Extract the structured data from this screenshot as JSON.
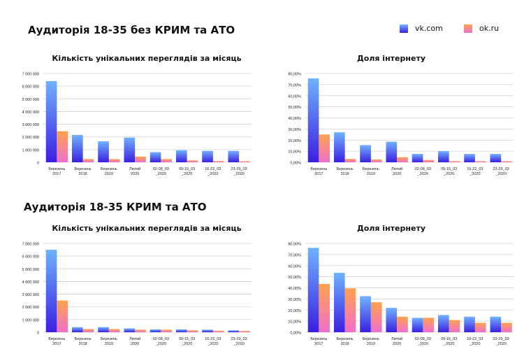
{
  "colors": {
    "vk_top": "#6fb2ff",
    "vk_bottom": "#3b1fe0",
    "ok_top": "#ffa24d",
    "ok_bottom": "#f070cc",
    "grid": "#d0d0d0"
  },
  "sections": [
    {
      "title": "Аудиторія 18-35 без КРИМ та АТО"
    },
    {
      "title": "Аудиторія 18-35 КРИМ та АТО"
    }
  ],
  "legend": [
    {
      "label": "vk.com",
      "color_key": "vk"
    },
    {
      "label": "ok.ru",
      "color_key": "ok"
    }
  ],
  "chart_titles": [
    "Кількість унікальних переглядів за місяць",
    "Доля інтернету",
    "Кількість унікальних переглядів за місяць",
    "Доля інтернету"
  ],
  "chart_data": [
    {
      "type": "bar",
      "title": "Кількість унікальних переглядів за місяць",
      "categories": [
        "Березень 2017",
        "Березень 2018",
        "Березень 2019",
        "Лютий 2020",
        "02-08_03 _2020",
        "09-15_03 _2020",
        "16-22_03 _2020",
        "23-29_03 _2020"
      ],
      "category_lines": [
        [
          "Березень",
          "2017"
        ],
        [
          "Березень",
          "2018"
        ],
        [
          "Березень",
          "2019"
        ],
        [
          "Лютий",
          "2020"
        ],
        [
          "02-08_03",
          "_2020"
        ],
        [
          "09-15_03",
          "_2020"
        ],
        [
          "16-22_03",
          "_2020"
        ],
        [
          "23-29_03",
          "_2020"
        ]
      ],
      "series": [
        {
          "name": "vk.com",
          "values": [
            6400000,
            2150000,
            1650000,
            1950000,
            800000,
            950000,
            900000,
            900000
          ]
        },
        {
          "name": "ok.ru",
          "values": [
            2450000,
            250000,
            250000,
            450000,
            250000,
            150000,
            100000,
            80000
          ]
        }
      ],
      "ylim": [
        0,
        7000000
      ],
      "yticks": [
        0,
        1000000,
        2000000,
        3000000,
        4000000,
        5000000,
        6000000,
        7000000
      ],
      "ytick_labels": [
        "0",
        "1 000 000",
        "2 000 000",
        "3 000 000",
        "4 000 000",
        "5 000 000",
        "6 000 000",
        "7 000 000"
      ],
      "grid": true
    },
    {
      "type": "bar",
      "title": "Доля інтернету",
      "categories": [
        "Березень 2017",
        "Березень 2018",
        "Березень 2019",
        "Лютий 2020",
        "02-08_03 _2020",
        "09-15_03 _2020",
        "16-22_03 _2020",
        "23-29_03 _2020"
      ],
      "category_lines": [
        [
          "Березень",
          "2017"
        ],
        [
          "Березень",
          "2018"
        ],
        [
          "Березень",
          "2019"
        ],
        [
          "Лютий",
          "2020"
        ],
        [
          "02-08_03",
          "_2020"
        ],
        [
          "09-15_03",
          "_2020"
        ],
        [
          "16-22_03",
          "_2020"
        ],
        [
          "23-29_03",
          "_2020"
        ]
      ],
      "series": [
        {
          "name": "vk.com",
          "values": [
            75.5,
            27.0,
            15.5,
            18.5,
            7.5,
            10.0,
            7.5,
            7.5
          ]
        },
        {
          "name": "ok.ru",
          "values": [
            25.0,
            3.0,
            2.5,
            4.5,
            2.0,
            1.0,
            1.0,
            1.0
          ]
        }
      ],
      "ylim": [
        0,
        80
      ],
      "yticks": [
        0,
        10,
        20,
        30,
        40,
        50,
        60,
        70,
        80
      ],
      "ytick_labels": [
        "0,00%",
        "10,00%",
        "20,00%",
        "30,00%",
        "40,00%",
        "50,00%",
        "60,00%",
        "70,00%",
        "80,00%"
      ],
      "grid": true
    },
    {
      "type": "bar",
      "title": "Кількість унікальних переглядів за місяць",
      "categories": [
        "Березень 2017",
        "Березень 2018",
        "Березень 2019",
        "Лютий 2020",
        "02-08_03 _2020",
        "09-15_03 _2020",
        "16-22_03 _2020",
        "23-29_03 _2020"
      ],
      "category_lines": [
        [
          "Березень",
          "2017"
        ],
        [
          "Березень",
          "2018"
        ],
        [
          "Березень",
          "2019"
        ],
        [
          "Лютий",
          "2020"
        ],
        [
          "02-08_03",
          "_2020"
        ],
        [
          "09-15_03",
          "_2020"
        ],
        [
          "16-22_03",
          "_2020"
        ],
        [
          "23-29_03",
          "_2020"
        ]
      ],
      "series": [
        {
          "name": "vk.com",
          "values": [
            6500000,
            400000,
            400000,
            300000,
            220000,
            220000,
            200000,
            150000
          ]
        },
        {
          "name": "ok.ru",
          "values": [
            2500000,
            250000,
            250000,
            200000,
            200000,
            150000,
            120000,
            100000
          ]
        }
      ],
      "ylim": [
        0,
        7000000
      ],
      "yticks": [
        0,
        1000000,
        2000000,
        3000000,
        4000000,
        5000000,
        6000000,
        7000000
      ],
      "ytick_labels": [
        "0",
        "1 000 000",
        "2 000 000",
        "3 000 000",
        "4 000 000",
        "5 000 000",
        "6 000 000",
        "7 000 000"
      ],
      "grid": true
    },
    {
      "type": "bar",
      "title": "Доля інтернету",
      "categories": [
        "Березень 2017",
        "Березень 2018",
        "Березень 2019",
        "Лютий 2020",
        "02-08_03 _2020",
        "09-15_03 _2020",
        "16-22_03 _2020",
        "23-29_03 _2020"
      ],
      "category_lines": [
        [
          "Березень",
          "2017"
        ],
        [
          "Березень",
          "2018"
        ],
        [
          "Березень",
          "2019"
        ],
        [
          "Лютий",
          "2020"
        ],
        [
          "02-08_03",
          "_2020"
        ],
        [
          "09-15_03",
          "_2020"
        ],
        [
          "16-22_03",
          "_2020"
        ],
        [
          "23-29_03",
          "_2020"
        ]
      ],
      "series": [
        {
          "name": "vk.com",
          "values": [
            76.0,
            53.5,
            32.5,
            22.0,
            13.0,
            15.5,
            14.0,
            14.0
          ]
        },
        {
          "name": "ok.ru",
          "values": [
            43.5,
            39.5,
            27.0,
            14.0,
            13.0,
            11.0,
            8.5,
            8.5
          ]
        }
      ],
      "ylim": [
        0,
        80
      ],
      "yticks": [
        0,
        10,
        20,
        30,
        40,
        50,
        60,
        70,
        80
      ],
      "ytick_labels": [
        "0,00%",
        "10,00%",
        "20,00%",
        "30,00%",
        "40,00%",
        "50,00%",
        "60,00%",
        "70,00%",
        "80,00%"
      ],
      "grid": true
    }
  ]
}
